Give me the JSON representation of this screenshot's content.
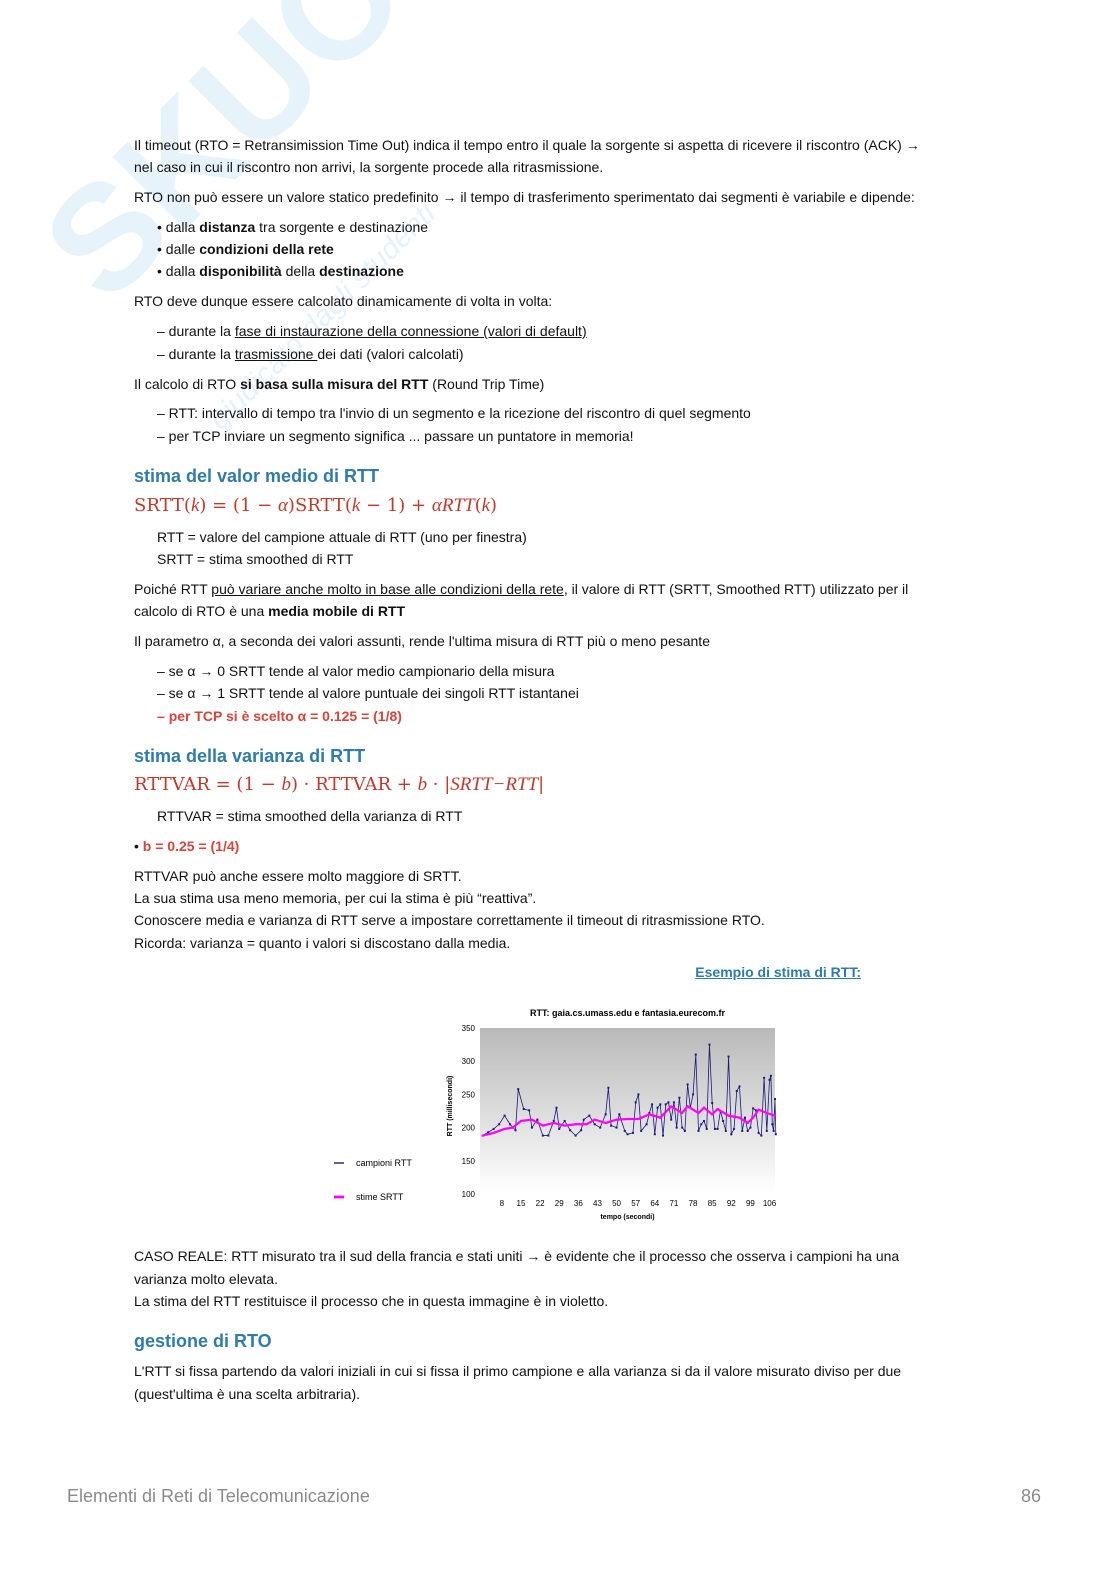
{
  "watermark": {
    "logo": "SKUOLA.net",
    "tagline": "giudicato dagli studenti"
  },
  "lines": [
    [
      [
        "Il timeout (RTO = Retransimission Time Out) indica il tempo entro il quale la sorgente si aspetta di ricevere il riscontro (ACK) →",
        ""
      ]
    ],
    [
      [
        "nel caso in cui il riscontro non arrivi, la sorgente procede alla ritrasmissione.",
        ""
      ]
    ],
    [
      [
        "RTO non può essere un valore statico predefinito →  il tempo di trasferimento sperimentato dai segmenti è variabile e dipende:",
        ""
      ]
    ],
    [
      [
        "• dalla ",
        ""
      ],
      [
        "distanza",
        "b"
      ],
      [
        " tra sorgente e destinazione",
        ""
      ]
    ],
    [
      [
        "• dalle ",
        ""
      ],
      [
        "condizioni della rete",
        "b"
      ]
    ],
    [
      [
        "• dalla ",
        ""
      ],
      [
        "disponibilità",
        "b"
      ],
      [
        " della ",
        ""
      ],
      [
        "destinazione",
        "b"
      ]
    ],
    [
      [
        "RTO deve dunque essere calcolato dinamicamente di volta in volta:",
        ""
      ]
    ],
    [
      [
        "– durante la ",
        ""
      ],
      [
        "fase di instaurazione della connessione (valori di default)",
        "u"
      ]
    ],
    [
      [
        "– durante la ",
        ""
      ],
      [
        "trasmissione ",
        "u"
      ],
      [
        "dei dati (valori calcolati)",
        ""
      ]
    ],
    [
      [
        "Il calcolo di RTO ",
        ""
      ],
      [
        "si basa sulla misura del RTT",
        "b"
      ],
      [
        " (Round Trip Time)",
        ""
      ]
    ],
    [
      [
        "– RTT: intervallo di tempo tra l'invio di un segmento e la ricezione del riscontro di quel segmento",
        ""
      ]
    ],
    [
      [
        "– per TCP inviare un segmento significa ... passare un puntatore in memoria!",
        ""
      ]
    ],
    [
      [
        "RTT = valore del campione attuale di RTT (uno per finestra)",
        ""
      ]
    ],
    [
      [
        "SRTT = stima smoothed di RTT",
        ""
      ]
    ],
    [
      [
        "Poiché RTT ",
        ""
      ],
      [
        "può variare anche molto in base alle condizioni della rete",
        "u"
      ],
      [
        ", il valore di RTT (SRTT, Smoothed RTT) utilizzato per il",
        ""
      ]
    ],
    [
      [
        "calcolo di RTO è una ",
        ""
      ],
      [
        "media mobile di RTT",
        "b"
      ]
    ],
    [
      [
        "Il parametro α, a seconda dei valori assunti, rende l'ultima misura di RTT più o meno pesante",
        ""
      ]
    ],
    [
      [
        "– se α → 0 SRTT tende al valor medio campionario della misura",
        ""
      ]
    ],
    [
      [
        "– se α → 1 SRTT tende al valore puntuale dei singoli RTT istantanei",
        ""
      ]
    ],
    [
      [
        "– ",
        "r"
      ],
      [
        "per TCP si è scelto α = 0.125 = (1/8)",
        "r"
      ]
    ],
    [
      [
        "RTTVAR = stima smoothed della varianza di RTT",
        ""
      ]
    ],
    [
      [
        "• ",
        ""
      ],
      [
        "b = 0.25 = (1/4)",
        "r"
      ]
    ],
    [
      [
        "RTTVAR può anche essere molto maggiore di SRTT.",
        ""
      ]
    ],
    [
      [
        "La sua stima usa meno memoria, per cui la stima è più “reattiva”.",
        ""
      ]
    ],
    [
      [
        "Conoscere media e varianza di RTT serve a impostare correttamente il timeout di ritrasmissione RTO.",
        ""
      ]
    ],
    [
      [
        "Ricorda: varianza = quanto i valori si discostano dalla media.",
        ""
      ]
    ],
    [
      [
        "CASO REALE: RTT misurato tra il sud della francia e stati uniti → è evidente che il processo che osserva i campioni ha una",
        ""
      ]
    ],
    [
      [
        "varianza molto elevata.",
        ""
      ]
    ],
    [
      [
        "La stima del RTT restituisce il processo che in questa immagine è in violetto.",
        ""
      ]
    ],
    [
      [
        "L'RTT si fissa partendo da valori iniziali in cui si fissa il primo campione e alla varianza si da il valore misurato diviso per due",
        ""
      ]
    ],
    [
      [
        "(quest'ultima è una scelta arbitraria).",
        ""
      ]
    ]
  ],
  "headings": [
    "stima del valor medio di RTT",
    "stima della varianza di RTT",
    "gestione di RTO"
  ],
  "formulas": [
    [
      [
        "SRTT(",
        ""
      ],
      [
        "k",
        "it"
      ],
      [
        ") = (1 − ",
        ""
      ],
      [
        "α",
        "it"
      ],
      [
        ")SRTT(",
        ""
      ],
      [
        "k",
        "it"
      ],
      [
        " − 1) + ",
        ""
      ],
      [
        "αRTT",
        "it"
      ],
      [
        "(",
        ""
      ],
      [
        "k",
        "it"
      ],
      [
        ")",
        ""
      ]
    ],
    [
      [
        "RTTVAR = (1 − ",
        ""
      ],
      [
        "b",
        "it"
      ],
      [
        ") · RTTVAR + ",
        ""
      ],
      [
        "b",
        "it"
      ],
      [
        " · |",
        ""
      ],
      [
        "SRTT−RTT",
        "it"
      ],
      [
        "|",
        ""
      ]
    ]
  ],
  "example_link": "Esempio di stima di RTT:",
  "footer": {
    "title": "Elementi di Reti di Telecomunicazione",
    "page": "86"
  },
  "chart_data": {
    "type": "line",
    "title": "RTT: gaia.cs.umass.edu e fantasia.eurecom.fr",
    "xlabel": "tempo (secondi)",
    "ylabel": "RTT (millisecondi)",
    "xlim": [
      0,
      108
    ],
    "ylim": [
      100,
      350
    ],
    "xticks": [
      8,
      15,
      22,
      29,
      36,
      43,
      50,
      57,
      64,
      71,
      78,
      85,
      92,
      99,
      106
    ],
    "yticks": [
      100,
      150,
      200,
      250,
      300,
      350
    ],
    "legend": "left",
    "colors": {
      "campioni": "#1a1a7a",
      "srtt": "#ff00ff"
    },
    "series": [
      {
        "name": "campioni RTT",
        "points": [
          [
            1,
            188
          ],
          [
            3,
            193
          ],
          [
            5,
            198
          ],
          [
            7,
            205
          ],
          [
            9,
            218
          ],
          [
            11,
            205
          ],
          [
            13,
            196
          ],
          [
            14,
            258
          ],
          [
            16,
            228
          ],
          [
            18,
            226
          ],
          [
            19,
            200
          ],
          [
            21,
            212
          ],
          [
            23,
            188
          ],
          [
            25,
            188
          ],
          [
            27,
            210
          ],
          [
            28,
            230
          ],
          [
            29,
            198
          ],
          [
            31,
            210
          ],
          [
            33,
            196
          ],
          [
            35,
            188
          ],
          [
            37,
            196
          ],
          [
            38,
            212
          ],
          [
            40,
            218
          ],
          [
            42,
            205
          ],
          [
            44,
            200
          ],
          [
            46,
            220
          ],
          [
            47,
            260
          ],
          [
            48,
            203
          ],
          [
            50,
            200
          ],
          [
            51,
            220
          ],
          [
            53,
            195
          ],
          [
            54,
            190
          ],
          [
            56,
            192
          ],
          [
            57,
            238
          ],
          [
            58,
            250
          ],
          [
            59,
            195
          ],
          [
            61,
            205
          ],
          [
            62,
            222
          ],
          [
            63,
            235
          ],
          [
            64,
            190
          ],
          [
            65,
            230
          ],
          [
            66,
            235
          ],
          [
            67,
            188
          ],
          [
            68,
            235
          ],
          [
            69,
            238
          ],
          [
            70,
            212
          ],
          [
            71,
            238
          ],
          [
            72,
            200
          ],
          [
            73,
            245
          ],
          [
            74,
            200
          ],
          [
            75,
            195
          ],
          [
            76,
            265
          ],
          [
            77,
            230
          ],
          [
            78,
            250
          ],
          [
            79,
            310
          ],
          [
            80,
            195
          ],
          [
            81,
            205
          ],
          [
            82,
            210
          ],
          [
            83,
            198
          ],
          [
            84,
            325
          ],
          [
            85,
            237
          ],
          [
            86,
            198
          ],
          [
            87,
            198
          ],
          [
            88,
            225
          ],
          [
            89,
            210
          ],
          [
            90,
            195
          ],
          [
            91,
            307
          ],
          [
            92,
            190
          ],
          [
            93,
            198
          ],
          [
            94,
            255
          ],
          [
            95,
            262
          ],
          [
            96,
            195
          ],
          [
            97,
            215
          ],
          [
            98,
            195
          ],
          [
            99,
            200
          ],
          [
            100,
            229
          ],
          [
            101,
            226
          ],
          [
            102,
            192
          ],
          [
            103,
            188
          ],
          [
            104,
            275
          ],
          [
            105,
            195
          ],
          [
            106,
            272
          ],
          [
            106.5,
            278
          ],
          [
            107,
            205
          ],
          [
            107.5,
            195
          ],
          [
            108,
            243
          ],
          [
            108.3,
            190
          ]
        ]
      },
      {
        "name": "stime SRTT",
        "points": [
          [
            1,
            188
          ],
          [
            5,
            192
          ],
          [
            9,
            198
          ],
          [
            12,
            200
          ],
          [
            15,
            210
          ],
          [
            19,
            212
          ],
          [
            23,
            203
          ],
          [
            27,
            207
          ],
          [
            31,
            203
          ],
          [
            35,
            205
          ],
          [
            39,
            205
          ],
          [
            42,
            212
          ],
          [
            46,
            207
          ],
          [
            50,
            212
          ],
          [
            54,
            213
          ],
          [
            58,
            213
          ],
          [
            62,
            220
          ],
          [
            66,
            215
          ],
          [
            70,
            232
          ],
          [
            74,
            222
          ],
          [
            76,
            232
          ],
          [
            80,
            222
          ],
          [
            82,
            230
          ],
          [
            85,
            220
          ],
          [
            87,
            228
          ],
          [
            91,
            218
          ],
          [
            95,
            215
          ],
          [
            98,
            207
          ],
          [
            100,
            215
          ],
          [
            102,
            227
          ],
          [
            105,
            222
          ],
          [
            108,
            218
          ]
        ]
      }
    ]
  }
}
